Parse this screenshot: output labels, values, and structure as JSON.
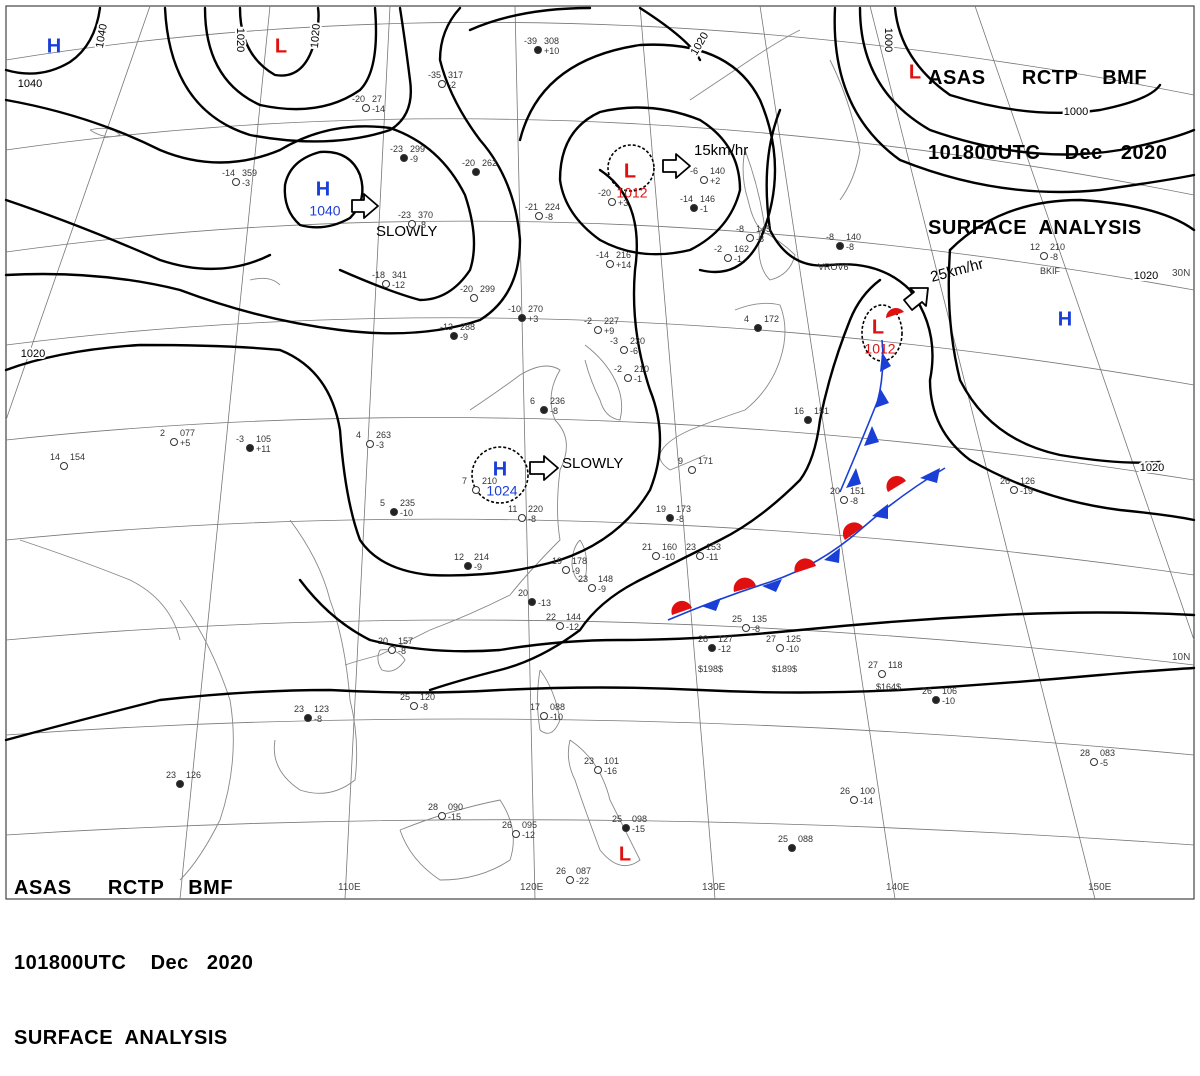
{
  "header": {
    "line1": "ASAS      RCTP    BMF",
    "line2": "101800UTC    Dec   2020",
    "line3": "SURFACE  ANALYSIS"
  },
  "pressure_labels": [
    {
      "id": "isobar-label-1040-a",
      "text": "1040"
    },
    {
      "id": "isobar-label-1040-b",
      "text": "1040"
    },
    {
      "id": "isobar-label-1020-a",
      "text": "1020"
    },
    {
      "id": "isobar-label-1020-b",
      "text": "1020"
    },
    {
      "id": "isobar-label-1020-c",
      "text": "1020"
    },
    {
      "id": "isobar-label-1020-d",
      "text": "1020"
    },
    {
      "id": "isobar-label-1020-e",
      "text": "1020"
    },
    {
      "id": "isobar-label-1020-f",
      "text": "1020"
    },
    {
      "id": "isobar-label-1000-a",
      "text": "1000"
    },
    {
      "id": "isobar-label-1000-b",
      "text": "1000"
    }
  ],
  "systems": [
    {
      "id": "high-nw",
      "type": "H",
      "color": "#1a3fd6"
    },
    {
      "id": "low-n",
      "type": "L",
      "color": "#e01010"
    },
    {
      "id": "high-mongolia",
      "type": "H",
      "color": "#1a3fd6",
      "value": "1040",
      "motion": "SLOWLY"
    },
    {
      "id": "low-korea",
      "type": "L",
      "color": "#e01010",
      "value": "1012",
      "motion": "15km/hr"
    },
    {
      "id": "low-ne",
      "type": "L",
      "color": "#e01010"
    },
    {
      "id": "high-pacific",
      "type": "H",
      "color": "#1a3fd6"
    },
    {
      "id": "low-japan",
      "type": "L",
      "color": "#e01010",
      "value": "1012",
      "motion": "25km/hr"
    },
    {
      "id": "high-china",
      "type": "H",
      "color": "#1a3fd6",
      "value": "1024",
      "motion": "SLOWLY"
    },
    {
      "id": "low-philippines",
      "type": "L",
      "color": "#e01010"
    }
  ],
  "lat_labels": [
    "30N",
    "10N"
  ],
  "lon_labels": [
    "110E",
    "120E",
    "130E",
    "140E",
    "150E"
  ],
  "stations": [
    {
      "t": "-39",
      "p": "308",
      "d": "+10"
    },
    {
      "t": "-35",
      "p": "317",
      "d": "-2"
    },
    {
      "t": "-20",
      "p": "27",
      "d": "-14"
    },
    {
      "t": "-23",
      "p": "299",
      "d": "-9"
    },
    {
      "t": "-14",
      "p": "359",
      "d": "-3"
    },
    {
      "t": "-23",
      "p": "370",
      "d": "-8"
    },
    {
      "t": "-20",
      "p": "262",
      "d": ""
    },
    {
      "t": "-21",
      "p": "224",
      "d": "-8"
    },
    {
      "t": "-20",
      "p": "",
      "d": "+3"
    },
    {
      "t": "-14",
      "p": "146",
      "d": "-1"
    },
    {
      "t": "-6",
      "p": "140",
      "d": "+2"
    },
    {
      "t": "-8",
      "p": "145",
      "d": "-8"
    },
    {
      "t": "-8",
      "p": "140",
      "d": "-8"
    },
    {
      "t": "-18",
      "p": "341",
      "d": "-12"
    },
    {
      "t": "-20",
      "p": "299",
      "d": ""
    },
    {
      "t": "-10",
      "p": "270",
      "d": "+3"
    },
    {
      "t": "-14",
      "p": "216",
      "d": "+14"
    },
    {
      "t": "-2",
      "p": "227",
      "d": "+9"
    },
    {
      "t": "-13",
      "p": "288",
      "d": "-9"
    },
    {
      "t": "-2",
      "p": "162",
      "d": "-1"
    },
    {
      "t": "12",
      "p": "210",
      "d": "-8"
    },
    {
      "t": "4",
      "p": "172",
      "d": ""
    },
    {
      "t": "-3",
      "p": "230",
      "d": "-6"
    },
    {
      "t": "-2",
      "p": "210",
      "d": "-1"
    },
    {
      "t": "6",
      "p": "236",
      "d": "-8"
    },
    {
      "t": "4",
      "p": "263",
      "d": "-3"
    },
    {
      "t": "2",
      "p": "077",
      "d": "+5"
    },
    {
      "t": "-3",
      "p": "105",
      "d": "+11"
    },
    {
      "t": "14",
      "p": "154",
      "d": ""
    },
    {
      "t": "7",
      "p": "210",
      "d": ""
    },
    {
      "t": "5",
      "p": "235",
      "d": "-10"
    },
    {
      "t": "11",
      "p": "220",
      "d": "-8"
    },
    {
      "t": "9",
      "p": "171",
      "d": ""
    },
    {
      "t": "16",
      "p": "151",
      "d": ""
    },
    {
      "t": "20",
      "p": "151",
      "d": "-8"
    },
    {
      "t": "26",
      "p": "126",
      "d": "-19"
    },
    {
      "t": "19",
      "p": "173",
      "d": "-8"
    },
    {
      "t": "21",
      "p": "160",
      "d": "-10"
    },
    {
      "t": "23",
      "p": "153",
      "d": "-11"
    },
    {
      "t": "12",
      "p": "214",
      "d": "-9"
    },
    {
      "t": "19",
      "p": "178",
      "d": "-9"
    },
    {
      "t": "23",
      "p": "148",
      "d": "-9"
    },
    {
      "t": "20",
      "p": "",
      "d": "-13"
    },
    {
      "t": "22",
      "p": "144",
      "d": "-12"
    },
    {
      "t": "25",
      "p": "135",
      "d": "-8"
    },
    {
      "t": "28",
      "p": "127",
      "d": "-12"
    },
    {
      "t": "27",
      "p": "125",
      "d": "-10"
    },
    {
      "t": "27",
      "p": "118",
      "d": ""
    },
    {
      "t": "26",
      "p": "106",
      "d": "-10"
    },
    {
      "t": "20",
      "p": "157",
      "d": "-8"
    },
    {
      "t": "25",
      "p": "120",
      "d": "-8"
    },
    {
      "t": "23",
      "p": "123",
      "d": "-8"
    },
    {
      "t": "17",
      "p": "088",
      "d": "-10"
    },
    {
      "t": "23",
      "p": "101",
      "d": "-16"
    },
    {
      "t": "23",
      "p": "126",
      "d": ""
    },
    {
      "t": "28",
      "p": "090",
      "d": "-15"
    },
    {
      "t": "26",
      "p": "095",
      "d": "-12"
    },
    {
      "t": "25",
      "p": "098",
      "d": "-15"
    },
    {
      "t": "26",
      "p": "100",
      "d": "-14"
    },
    {
      "t": "28",
      "p": "083",
      "d": "-5"
    },
    {
      "t": "25",
      "p": "088",
      "d": ""
    },
    {
      "t": "26",
      "p": "087",
      "d": "-22"
    }
  ],
  "extra_labels": [
    {
      "id": "ship-1",
      "text": "$198$"
    },
    {
      "id": "ship-2",
      "text": "$189$"
    },
    {
      "id": "ship-3",
      "text": "$164$"
    },
    {
      "id": "stn-bkif",
      "text": "BKIF"
    },
    {
      "id": "stn-vrov",
      "text": "VROV6"
    }
  ]
}
